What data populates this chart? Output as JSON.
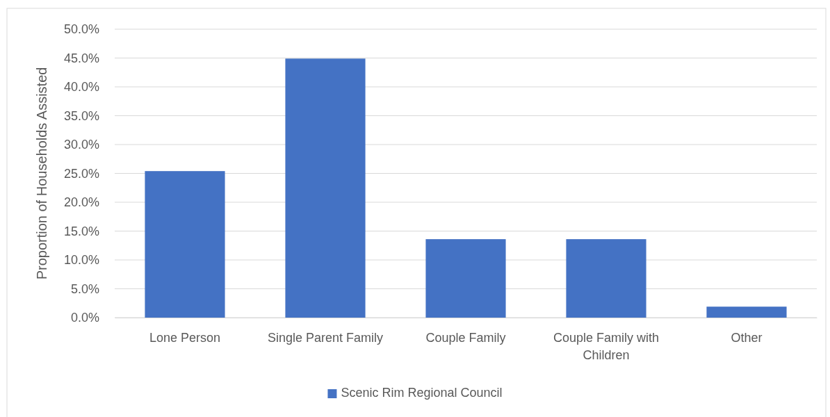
{
  "chart_data": {
    "type": "bar",
    "ylabel": "Proportion of Households Assisted",
    "categories": [
      "Lone Person",
      "Single Parent Family",
      "Couple Family",
      "Couple Family with Children",
      "Other"
    ],
    "series": [
      {
        "name": "Scenic Rim Regional Council",
        "color": "#4472c4",
        "values": [
          25.4,
          44.9,
          13.6,
          13.6,
          1.9
        ]
      }
    ],
    "ylim": [
      0,
      50
    ],
    "yticks": [
      {
        "value": 0,
        "label": "0.0%"
      },
      {
        "value": 5,
        "label": "5.0%"
      },
      {
        "value": 10,
        "label": "10.0%"
      },
      {
        "value": 15,
        "label": "15.0%"
      },
      {
        "value": 20,
        "label": "20.0%"
      },
      {
        "value": 25,
        "label": "25.0%"
      },
      {
        "value": 30,
        "label": "30.0%"
      },
      {
        "value": 35,
        "label": "35.0%"
      },
      {
        "value": 40,
        "label": "40.0%"
      },
      {
        "value": 45,
        "label": "45.0%"
      },
      {
        "value": 50,
        "label": "50.0%"
      }
    ],
    "grid": "y",
    "legend": "bottom"
  }
}
